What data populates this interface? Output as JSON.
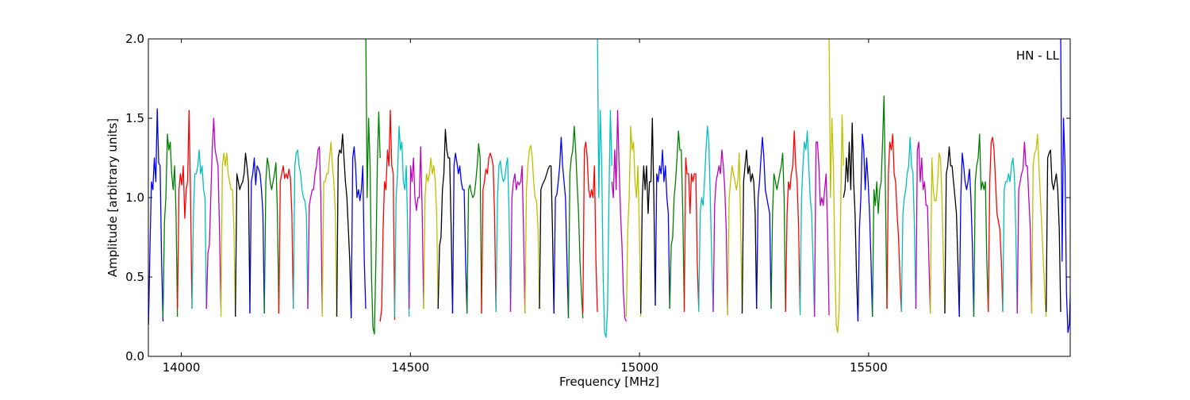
{
  "chart_data": {
    "type": "line",
    "title": "",
    "annotation": "HN - LL",
    "xlabel": "Frequency [MHz]",
    "ylabel": "Amplitude [arbitrary units]",
    "xlim": [
      13928,
      15940
    ],
    "ylim": [
      0,
      2
    ],
    "xticks": [
      14000,
      14500,
      15000,
      15500
    ],
    "xtick_labels": [
      "14000",
      "14500",
      "15000",
      "15500"
    ],
    "yticks": [
      0,
      0.5,
      1,
      1.5,
      2
    ],
    "ytick_labels": [
      "0.0",
      "0.5",
      "1.0",
      "1.5",
      "2.0"
    ],
    "grid": false,
    "color_cycle": [
      "#0000ff",
      "#008000",
      "#ff0000",
      "#00bfbf",
      "#bf00bf",
      "#bfbf00",
      "#000000"
    ],
    "segment_start_mhz": 13928.4,
    "segment_width_mhz": 31.6,
    "segments": [
      [
        0.2,
        0.7,
        1.1,
        1.05,
        1.25,
        1.1,
        1.56,
        1.22,
        1.2,
        0.6,
        0.22
      ],
      [
        0.25,
        0.85,
        1.0,
        1.4,
        1.3,
        1.35,
        1.15,
        1.05,
        1.2,
        0.9,
        0.25
      ],
      [
        0.3,
        1.05,
        1.15,
        1.08,
        1.2,
        0.87,
        1.05,
        1.1,
        1.55,
        1.0,
        0.3
      ],
      [
        0.3,
        0.9,
        1.15,
        1.15,
        1.2,
        1.3,
        1.15,
        1.2,
        1.05,
        1.0,
        0.3
      ],
      [
        0.3,
        0.65,
        0.7,
        1.0,
        1.3,
        1.5,
        1.3,
        1.25,
        1.2,
        0.8,
        0.3
      ],
      [
        0.25,
        1.2,
        1.28,
        1.2,
        1.28,
        1.15,
        1.1,
        1.05,
        1.05,
        0.8,
        0.25
      ],
      [
        0.25,
        1.15,
        1.1,
        1.05,
        1.08,
        1.1,
        1.15,
        1.28,
        1.2,
        1.1,
        0.28
      ],
      [
        0.27,
        1.1,
        1.15,
        1.25,
        1.08,
        1.2,
        1.18,
        1.15,
        1.05,
        0.9,
        0.27
      ],
      [
        0.27,
        1.1,
        1.25,
        1.2,
        1.1,
        1.05,
        1.1,
        1.15,
        1.22,
        0.9,
        0.27
      ],
      [
        0.27,
        1.1,
        1.15,
        1.2,
        1.12,
        1.15,
        1.12,
        1.18,
        1.12,
        0.9,
        0.3
      ],
      [
        0.3,
        1.2,
        1.28,
        1.3,
        1.2,
        1.15,
        1.05,
        1.0,
        0.98,
        0.9,
        0.3
      ],
      [
        0.3,
        0.95,
        1.0,
        1.05,
        1.05,
        1.15,
        1.2,
        1.3,
        1.32,
        1.0,
        0.27
      ],
      [
        0.25,
        1.1,
        1.1,
        1.15,
        1.15,
        1.25,
        1.35,
        1.2,
        1.1,
        0.9,
        0.25
      ],
      [
        0.25,
        1.25,
        1.3,
        1.28,
        1.4,
        1.25,
        1.1,
        1.0,
        0.8,
        0.6,
        0.24
      ],
      [
        0.25,
        1.25,
        1.32,
        1.2,
        1.0,
        1.05,
        0.98,
        1.05,
        1.2,
        0.6,
        0.3
      ],
      [
        2.1,
        1.0,
        1.5,
        1.2,
        0.5,
        0.18,
        0.14,
        0.6,
        1.2,
        1.54,
        1.25
      ],
      [
        0.22,
        0.3,
        0.8,
        1.1,
        1.05,
        1.3,
        1.2,
        1.55,
        1.2,
        1.15,
        0.23
      ],
      [
        0.25,
        1.0,
        1.15,
        1.45,
        1.3,
        1.35,
        1.1,
        1.05,
        1.2,
        0.8,
        0.25
      ],
      [
        0.3,
        1.2,
        1.1,
        1.25,
        1.0,
        0.92,
        1.0,
        1.0,
        1.32,
        0.9,
        0.3
      ],
      [
        0.3,
        1.0,
        1.15,
        1.1,
        1.15,
        1.25,
        1.15,
        1.2,
        1.1,
        0.9,
        0.3
      ],
      [
        0.3,
        0.7,
        0.75,
        1.05,
        1.15,
        1.43,
        1.3,
        1.25,
        1.25,
        0.8,
        0.27
      ],
      [
        0.27,
        1.2,
        1.28,
        1.22,
        1.15,
        1.2,
        1.1,
        1.05,
        1.05,
        0.6,
        0.27
      ],
      [
        0.27,
        1.05,
        1.08,
        1.03,
        1.0,
        1.02,
        1.1,
        1.2,
        1.34,
        1.25,
        0.27
      ],
      [
        0.27,
        1.05,
        1.1,
        1.18,
        1.15,
        1.25,
        1.28,
        1.25,
        1.2,
        0.9,
        0.28
      ],
      [
        0.28,
        1.0,
        1.2,
        1.23,
        1.15,
        1.1,
        1.12,
        1.2,
        1.25,
        0.9,
        0.28
      ],
      [
        0.28,
        1.0,
        1.1,
        1.15,
        1.05,
        1.1,
        1.08,
        1.1,
        1.2,
        0.8,
        0.27
      ],
      [
        0.27,
        1.05,
        1.2,
        1.3,
        1.33,
        1.25,
        1.1,
        1.0,
        0.98,
        0.8,
        0.3
      ],
      [
        0.3,
        1.05,
        1.08,
        1.1,
        1.12,
        1.15,
        1.18,
        1.2,
        1.2,
        0.8,
        0.27
      ],
      [
        0.27,
        1.0,
        1.02,
        1.1,
        1.2,
        1.38,
        1.2,
        1.1,
        1.0,
        0.6,
        0.24
      ],
      [
        0.24,
        1.15,
        1.25,
        1.3,
        1.45,
        1.3,
        1.1,
        0.9,
        0.6,
        0.4,
        0.24
      ],
      [
        0.27,
        1.3,
        1.35,
        1.25,
        1.05,
        1.0,
        1.05,
        1.0,
        1.2,
        0.6,
        0.28
      ],
      [
        2.1,
        1.0,
        1.55,
        1.2,
        0.5,
        0.15,
        0.12,
        0.3,
        1.0,
        1.55,
        1.2
      ],
      [
        1.1,
        1.0,
        1.3,
        1.05,
        1.55,
        1.2,
        0.9,
        0.7,
        0.4,
        0.24,
        0.22
      ],
      [
        0.25,
        0.8,
        1.0,
        1.45,
        1.3,
        1.35,
        1.1,
        1.0,
        1.2,
        0.8,
        0.25
      ],
      [
        0.27,
        1.0,
        1.2,
        1.05,
        1.2,
        0.9,
        1.1,
        1.1,
        1.5,
        1.0,
        0.32
      ],
      [
        0.32,
        1.15,
        1.1,
        1.2,
        1.15,
        1.3,
        1.1,
        1.2,
        1.0,
        0.9,
        0.3
      ],
      [
        0.3,
        0.7,
        0.75,
        1.0,
        1.1,
        1.25,
        1.42,
        1.3,
        1.3,
        0.9,
        0.3
      ],
      [
        0.28,
        1.25,
        1.15,
        1.15,
        0.9,
        1.15,
        1.1,
        1.15,
        1.15,
        0.6,
        0.3
      ],
      [
        0.28,
        0.9,
        1.0,
        0.95,
        1.1,
        1.3,
        1.45,
        1.35,
        1.0,
        0.6,
        0.28
      ],
      [
        0.28,
        0.95,
        1.1,
        1.15,
        1.2,
        1.15,
        1.3,
        1.2,
        1.05,
        0.8,
        0.26
      ],
      [
        0.26,
        1.0,
        1.1,
        1.2,
        1.15,
        1.1,
        1.05,
        1.1,
        1.28,
        0.8,
        0.27
      ],
      [
        0.27,
        1.1,
        1.2,
        1.3,
        1.15,
        1.2,
        1.1,
        1.15,
        1.1,
        0.9,
        0.3
      ],
      [
        0.3,
        1.0,
        1.1,
        1.25,
        1.38,
        1.25,
        1.05,
        1.0,
        0.95,
        0.9,
        0.3
      ],
      [
        0.3,
        0.9,
        1.15,
        1.1,
        1.05,
        1.1,
        1.15,
        1.2,
        1.28,
        1.0,
        0.28
      ],
      [
        0.28,
        0.9,
        1.1,
        1.05,
        1.15,
        1.2,
        1.42,
        1.2,
        1.1,
        0.8,
        0.28
      ],
      [
        0.26,
        1.0,
        1.2,
        1.35,
        1.3,
        1.42,
        1.2,
        1.0,
        0.9,
        0.6,
        0.25
      ],
      [
        0.25,
        1.35,
        1.35,
        1.2,
        0.95,
        1.0,
        0.95,
        1.05,
        1.15,
        0.8,
        0.26
      ],
      [
        2.05,
        1.0,
        1.5,
        1.2,
        0.6,
        0.2,
        0.15,
        0.3,
        0.9,
        1.52,
        1.2
      ],
      [
        1.0,
        1.05,
        1.25,
        1.1,
        1.35,
        1.05,
        1.47,
        1.1,
        0.9,
        0.5,
        0.22
      ],
      [
        0.22,
        0.8,
        1.0,
        1.4,
        1.3,
        1.05,
        1.25,
        1.1,
        0.9,
        0.6,
        0.25
      ],
      [
        0.25,
        1.05,
        0.95,
        1.1,
        0.9,
        1.05,
        1.1,
        1.35,
        1.64,
        1.0,
        0.3
      ],
      [
        0.3,
        1.15,
        1.35,
        1.3,
        1.4,
        1.15,
        1.1,
        0.9,
        0.75,
        0.5,
        0.28
      ],
      [
        0.28,
        0.9,
        1.0,
        1.05,
        1.15,
        1.2,
        1.38,
        1.2,
        1.15,
        0.8,
        0.3
      ],
      [
        0.3,
        1.3,
        1.35,
        1.1,
        1.25,
        1.05,
        1.1,
        0.95,
        0.95,
        0.6,
        0.27
      ],
      [
        0.27,
        1.25,
        1.05,
        0.98,
        0.98,
        1.1,
        1.28,
        1.25,
        1.0,
        0.6,
        0.27
      ],
      [
        0.27,
        1.15,
        1.2,
        1.32,
        1.2,
        1.2,
        1.1,
        1.0,
        0.9,
        0.6,
        0.25
      ],
      [
        0.25,
        1.0,
        1.28,
        1.2,
        1.1,
        1.05,
        1.1,
        1.18,
        1.0,
        0.7,
        0.25
      ],
      [
        0.25,
        1.1,
        1.2,
        1.25,
        1.4,
        1.05,
        1.1,
        1.05,
        1.1,
        0.6,
        0.28
      ],
      [
        0.28,
        1.1,
        1.35,
        1.38,
        1.3,
        1.1,
        0.9,
        0.85,
        0.8,
        0.6,
        0.28
      ],
      [
        0.28,
        1.05,
        1.1,
        1.1,
        1.15,
        1.1,
        1.2,
        1.25,
        1.15,
        0.8,
        0.27
      ],
      [
        0.27,
        1.05,
        1.1,
        1.15,
        1.18,
        1.35,
        1.2,
        1.2,
        1.0,
        0.8,
        0.27
      ],
      [
        0.27,
        1.2,
        1.28,
        1.3,
        1.4,
        1.2,
        1.0,
        0.8,
        0.6,
        0.4,
        0.25
      ],
      [
        0.28,
        1.25,
        1.28,
        1.3,
        1.1,
        1.05,
        1.1,
        1.15,
        1.05,
        0.8,
        0.28
      ],
      [
        2.05,
        0.6,
        1.5,
        1.2,
        0.4,
        0.15,
        0.2,
        0.5,
        1.2,
        1.55,
        1.4
      ]
    ]
  }
}
